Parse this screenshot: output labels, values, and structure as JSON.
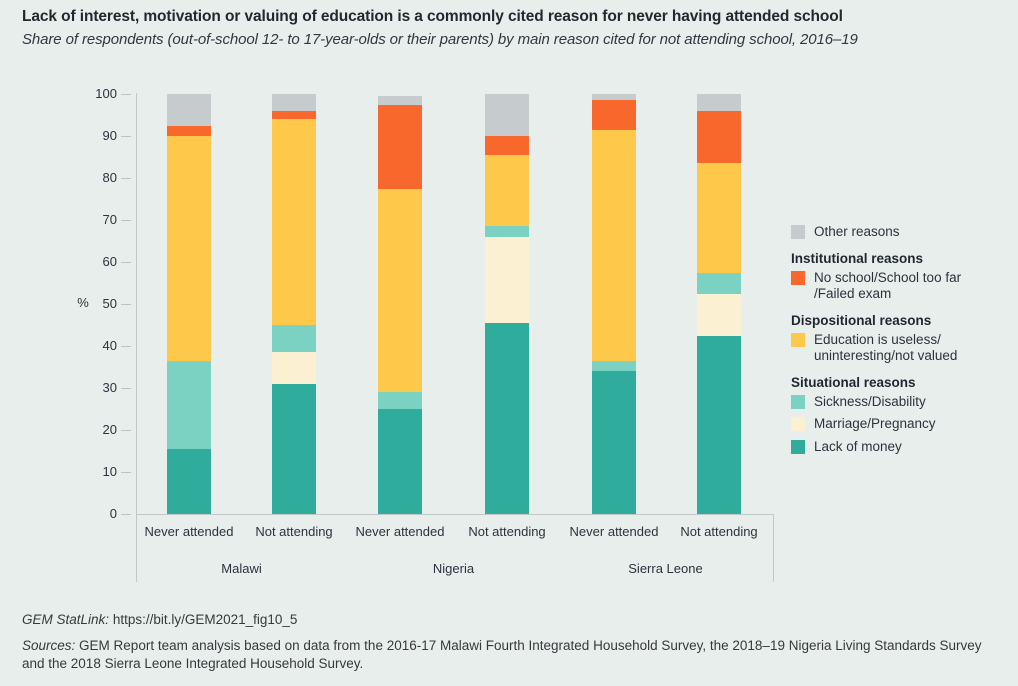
{
  "header": {
    "title": "Lack of interest, motivation or valuing of education is a commonly cited reason for never having attended school",
    "subtitle": "Share of respondents (out-of-school 12- to 17-year-olds or their parents) by main reason cited for not attending school, 2016–19"
  },
  "chart_data": {
    "type": "bar",
    "subtype": "stacked-percentage",
    "ylabel": "%",
    "ylim": [
      0,
      100
    ],
    "yticks": [
      0,
      10,
      20,
      30,
      40,
      50,
      60,
      70,
      80,
      90,
      100
    ],
    "grid": false,
    "legend_position": "right",
    "bars": [
      {
        "group": "Malawi",
        "label": "Never attended"
      },
      {
        "group": "Malawi",
        "label": "Not attending"
      },
      {
        "group": "Nigeria",
        "label": "Never attended"
      },
      {
        "group": "Nigeria",
        "label": "Not attending"
      },
      {
        "group": "Sierra Leone",
        "label": "Never attended"
      },
      {
        "group": "Sierra Leone",
        "label": "Not attending"
      }
    ],
    "groups": [
      "Malawi",
      "Nigeria",
      "Sierra Leone"
    ],
    "series": [
      {
        "name": "Lack of money",
        "color": "#2FAC9C",
        "values": [
          15.5,
          31,
          25,
          45.5,
          34,
          42.5
        ]
      },
      {
        "name": "Marriage/Pregnancy",
        "color": "#FCF0D2",
        "values": [
          0,
          7.5,
          0,
          20.5,
          0,
          10
        ]
      },
      {
        "name": "Sickness/Disability",
        "color": "#7CD2C2",
        "values": [
          21,
          6.5,
          4,
          2.5,
          2.5,
          5
        ]
      },
      {
        "name": "Education is useless/uninteresting/not valued",
        "color": "#FEC94B",
        "values": [
          53.5,
          49,
          48.5,
          17,
          55,
          26
        ]
      },
      {
        "name": "No school/School too far/Failed exam",
        "color": "#F8682C",
        "values": [
          2.5,
          2,
          20,
          4.5,
          7,
          12.5
        ]
      },
      {
        "name": "Other reasons",
        "color": "#C6CBCD",
        "values": [
          7.5,
          4,
          2,
          10,
          1.5,
          4
        ]
      }
    ]
  },
  "legend": {
    "items_ungrouped": [
      {
        "label": "Other reasons",
        "color": "#C6CBCD"
      }
    ],
    "groups": [
      {
        "header": "Institutional reasons",
        "items": [
          {
            "label": "No school/School too far\n/Failed exam",
            "color": "#F8682C"
          }
        ]
      },
      {
        "header": "Dispositional reasons",
        "items": [
          {
            "label": "Education is useless/\nuninteresting/not valued",
            "color": "#FEC94B"
          }
        ]
      },
      {
        "header": "Situational reasons",
        "items": [
          {
            "label": "Sickness/Disability",
            "color": "#7CD2C2"
          },
          {
            "label": "Marriage/Pregnancy",
            "color": "#FCF0D2"
          },
          {
            "label": "Lack of money",
            "color": "#2FAC9C"
          }
        ]
      }
    ]
  },
  "footer": {
    "statlink_label": "GEM StatLink:",
    "statlink_url": "https://bit.ly/GEM2021_fig10_5",
    "sources_label": "Sources:",
    "sources_text": "GEM Report team analysis based on data from the 2016-17 Malawi Fourth Integrated Household Survey, the 2018–19 Nigeria Living Standards Survey and the 2018 Sierra Leone Integrated Household Survey."
  },
  "colors": {
    "background": "#E8EEEB",
    "axis": "#C2C8C6",
    "text_dark": "#2B333D"
  }
}
